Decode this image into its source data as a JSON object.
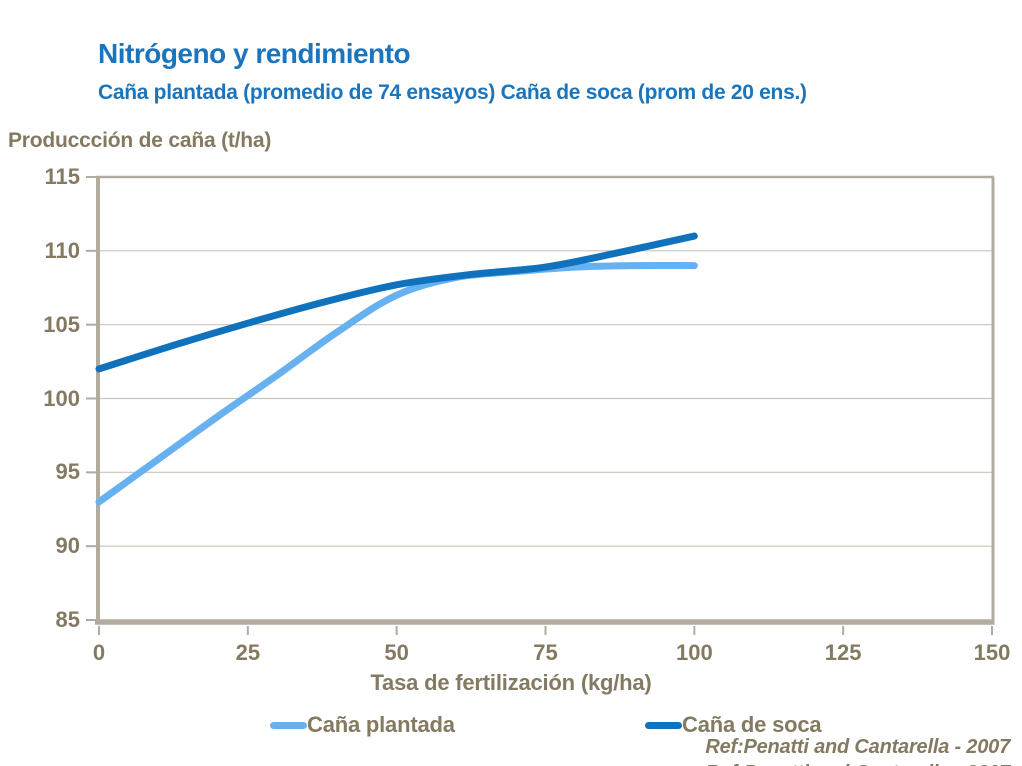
{
  "header": {
    "title": "Nitrógeno y rendimiento",
    "subtitle": "Caña plantada (promedio de 74 ensayos) Caña de soca (prom de 20 ens.)"
  },
  "colors": {
    "title_blue": "#1B75BC",
    "text_brown": "#847A62",
    "axis": "#B2ABA0",
    "gridline": "#C9C5BD",
    "series_plantada": "#67B1F0",
    "series_soca": "#1072BD"
  },
  "chart_data": {
    "type": "line",
    "title": "Nitrógeno y rendimiento",
    "subtitle": "Caña plantada (promedio de 74 ensayos) Caña de soca (prom de 20 ens.)",
    "ylabel": "Produccción de caña (t/ha)",
    "xlabel": "Tasa de fertilización (kg/ha)",
    "xlim": [
      0,
      150
    ],
    "ylim": [
      85,
      115
    ],
    "xticks": [
      0,
      25,
      50,
      75,
      100,
      125,
      150
    ],
    "yticks": [
      115,
      110,
      105,
      100,
      95,
      90,
      85
    ],
    "grid": true,
    "legend_position": "bottom",
    "series": [
      {
        "name": "Caña plantada",
        "color": "#67B1F0",
        "x": [
          0,
          10,
          20,
          30,
          40,
          50,
          60,
          70,
          80,
          90,
          100
        ],
        "y": [
          93,
          95.9,
          98.8,
          101.6,
          104.5,
          107.0,
          108.2,
          108.6,
          108.9,
          109.0,
          109.0
        ]
      },
      {
        "name": "Caña de soca",
        "color": "#1072BD",
        "x": [
          0,
          12.5,
          25,
          37.5,
          50,
          62.5,
          75,
          87.5,
          100
        ],
        "y": [
          102,
          103.6,
          105.1,
          106.5,
          107.7,
          108.4,
          108.9,
          109.9,
          111.0
        ]
      }
    ]
  },
  "legend": {
    "items": [
      {
        "label": "Caña plantada"
      },
      {
        "label": "Caña de soca"
      }
    ]
  },
  "footer": {
    "reference": "Ref:Penatti and Cantarella - 2007"
  }
}
